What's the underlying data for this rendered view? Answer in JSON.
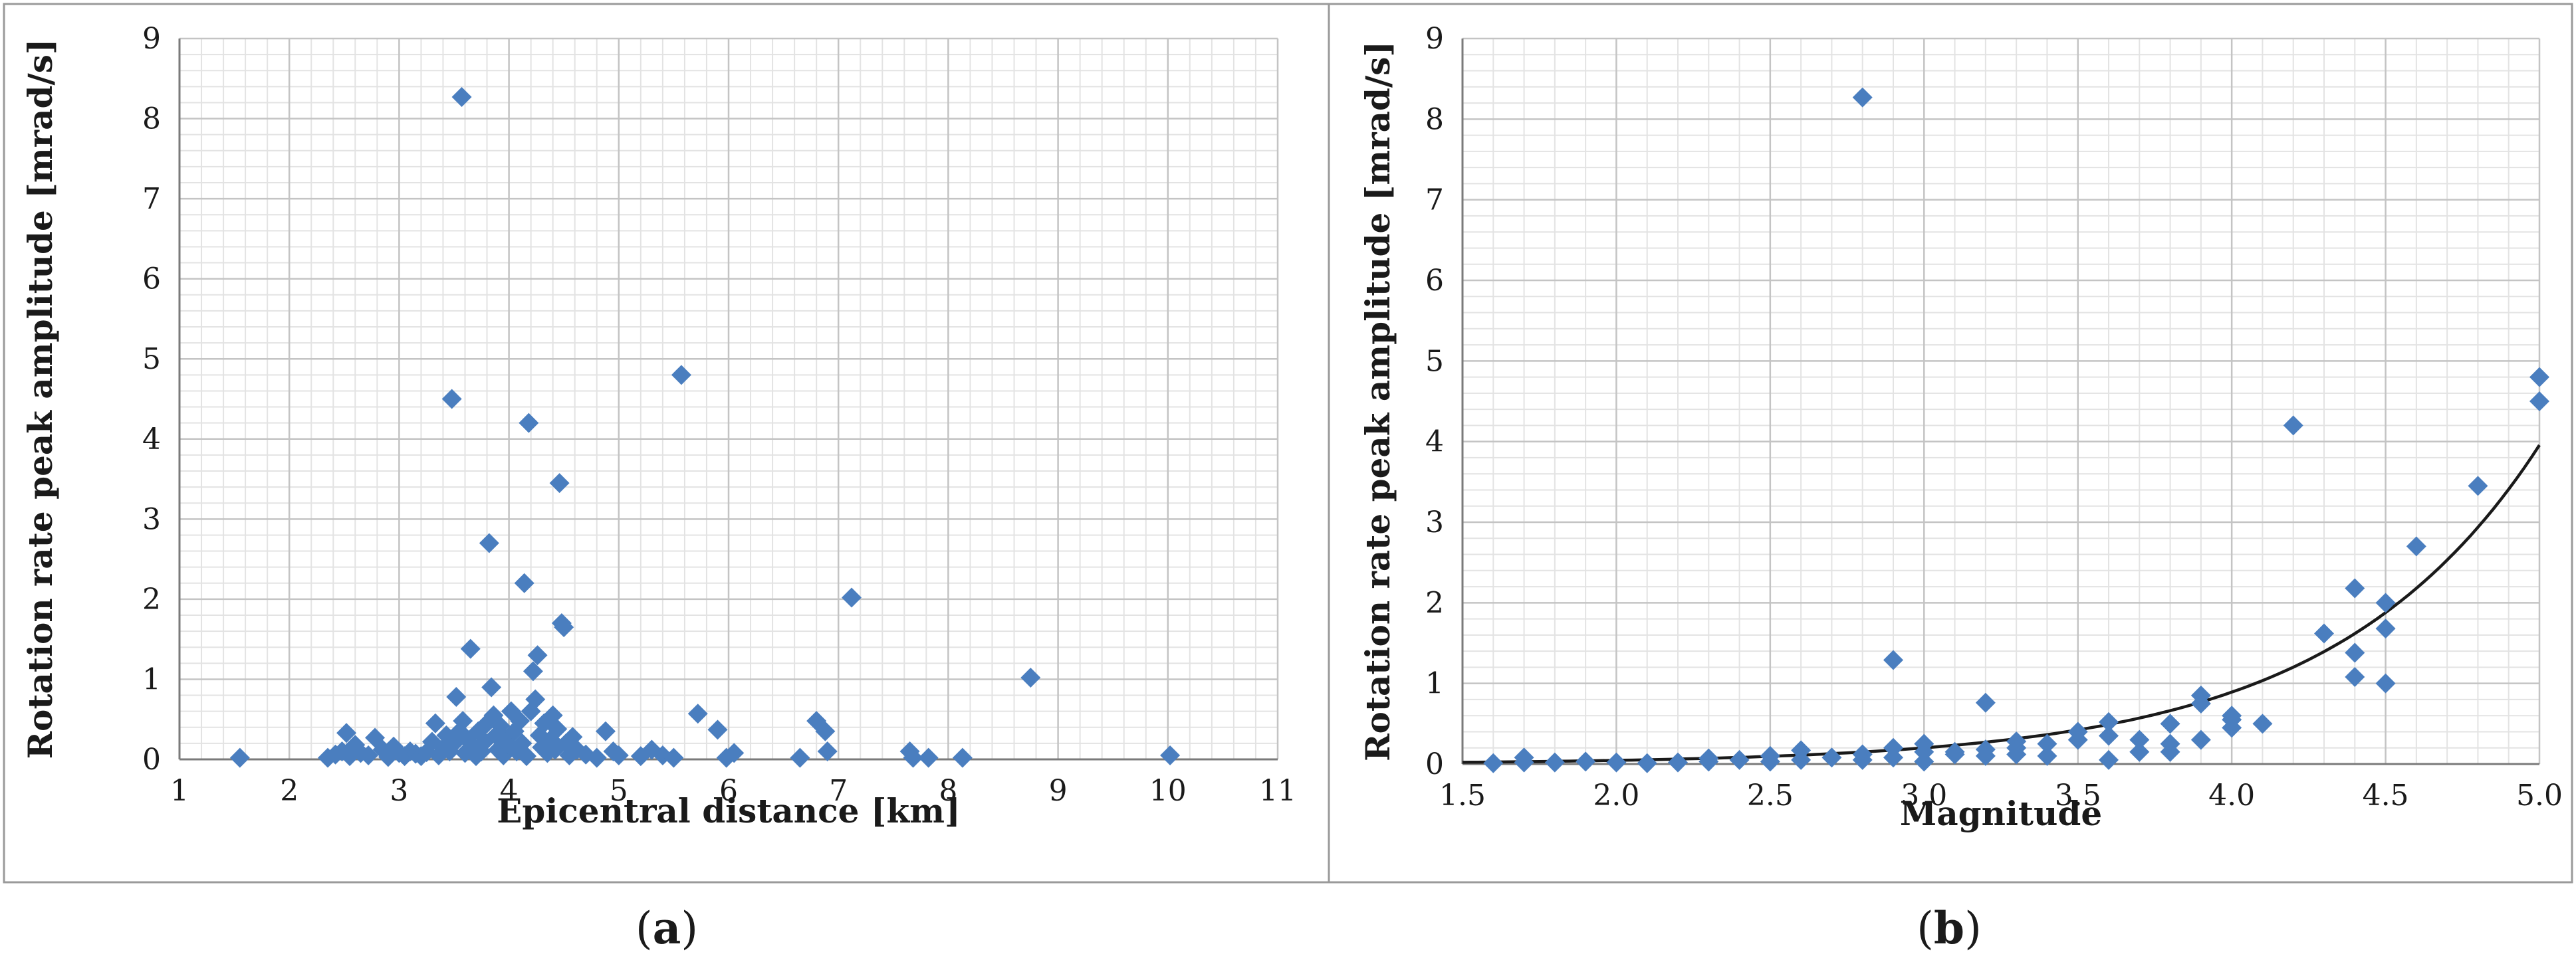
{
  "chart_data": [
    {
      "type": "scatter",
      "panel_label": "a",
      "xlabel": "Epicentral distance  [km]",
      "ylabel": "Rotation rate peak amplitude [mrad/s]",
      "xlim": [
        1,
        11
      ],
      "ylim": [
        0,
        9
      ],
      "x_ticks": [
        1,
        2,
        3,
        4,
        5,
        6,
        7,
        8,
        9,
        10,
        11
      ],
      "y_ticks": [
        0,
        1,
        2,
        3,
        4,
        5,
        6,
        7,
        8,
        9
      ],
      "x_tick_labels": [
        "1",
        "2",
        "3",
        "4",
        "5",
        "6",
        "7",
        "8",
        "9",
        "10",
        "11"
      ],
      "y_tick_labels": [
        "0",
        "1",
        "2",
        "3",
        "4",
        "5",
        "6",
        "7",
        "8",
        "9"
      ],
      "grid": "major and minor",
      "marker": "diamond",
      "marker_color": "#4a7ebf",
      "series": [
        {
          "points": [
            [
              1.55,
              0.02
            ],
            [
              2.35,
              0.02
            ],
            [
              2.42,
              0.06
            ],
            [
              2.48,
              0.1
            ],
            [
              2.52,
              0.33
            ],
            [
              2.55,
              0.04
            ],
            [
              2.6,
              0.18
            ],
            [
              2.65,
              0.08
            ],
            [
              2.72,
              0.05
            ],
            [
              2.78,
              0.27
            ],
            [
              2.85,
              0.12
            ],
            [
              2.9,
              0.03
            ],
            [
              2.95,
              0.16
            ],
            [
              3.0,
              0.08
            ],
            [
              3.05,
              0.04
            ],
            [
              3.1,
              0.1
            ],
            [
              3.15,
              0.07
            ],
            [
              3.2,
              0.04
            ],
            [
              3.25,
              0.09
            ],
            [
              3.3,
              0.22
            ],
            [
              3.33,
              0.45
            ],
            [
              3.36,
              0.05
            ],
            [
              3.4,
              0.14
            ],
            [
              3.43,
              0.3
            ],
            [
              3.46,
              0.1
            ],
            [
              3.48,
              4.5
            ],
            [
              3.5,
              0.2
            ],
            [
              3.52,
              0.78
            ],
            [
              3.55,
              0.35
            ],
            [
              3.57,
              8.27
            ],
            [
              3.58,
              0.48
            ],
            [
              3.6,
              0.08
            ],
            [
              3.62,
              0.25
            ],
            [
              3.65,
              1.38
            ],
            [
              3.68,
              0.15
            ],
            [
              3.7,
              0.04
            ],
            [
              3.72,
              0.35
            ],
            [
              3.75,
              0.1
            ],
            [
              3.78,
              0.22
            ],
            [
              3.8,
              0.45
            ],
            [
              3.82,
              2.7
            ],
            [
              3.84,
              0.9
            ],
            [
              3.86,
              0.55
            ],
            [
              3.88,
              0.3
            ],
            [
              3.9,
              0.12
            ],
            [
              3.92,
              0.42
            ],
            [
              3.95,
              0.05
            ],
            [
              3.97,
              0.25
            ],
            [
              4.0,
              0.18
            ],
            [
              4.02,
              0.6
            ],
            [
              4.05,
              0.35
            ],
            [
              4.07,
              0.1
            ],
            [
              4.1,
              0.48
            ],
            [
              4.12,
              0.2
            ],
            [
              4.14,
              2.2
            ],
            [
              4.16,
              0.04
            ],
            [
              4.18,
              4.2
            ],
            [
              4.2,
              0.6
            ],
            [
              4.22,
              1.1
            ],
            [
              4.24,
              0.75
            ],
            [
              4.26,
              1.3
            ],
            [
              4.28,
              0.3
            ],
            [
              4.3,
              0.15
            ],
            [
              4.32,
              0.45
            ],
            [
              4.35,
              0.08
            ],
            [
              4.38,
              0.25
            ],
            [
              4.4,
              0.55
            ],
            [
              4.42,
              0.12
            ],
            [
              4.44,
              0.38
            ],
            [
              4.46,
              3.45
            ],
            [
              4.48,
              1.7
            ],
            [
              4.5,
              1.65
            ],
            [
              4.52,
              0.2
            ],
            [
              4.55,
              0.05
            ],
            [
              4.58,
              0.28
            ],
            [
              4.62,
              0.12
            ],
            [
              4.7,
              0.06
            ],
            [
              4.8,
              0.02
            ],
            [
              4.88,
              0.35
            ],
            [
              4.95,
              0.1
            ],
            [
              5.0,
              0.05
            ],
            [
              5.2,
              0.04
            ],
            [
              5.3,
              0.12
            ],
            [
              5.4,
              0.05
            ],
            [
              5.5,
              0.02
            ],
            [
              5.57,
              4.8
            ],
            [
              5.72,
              0.57
            ],
            [
              5.9,
              0.37
            ],
            [
              5.98,
              0.02
            ],
            [
              6.05,
              0.08
            ],
            [
              6.65,
              0.02
            ],
            [
              6.8,
              0.48
            ],
            [
              6.88,
              0.35
            ],
            [
              6.9,
              0.1
            ],
            [
              7.12,
              2.02
            ],
            [
              7.65,
              0.1
            ],
            [
              7.68,
              0.02
            ],
            [
              7.82,
              0.02
            ],
            [
              8.13,
              0.02
            ],
            [
              8.75,
              1.02
            ],
            [
              10.02,
              0.05
            ]
          ]
        }
      ]
    },
    {
      "type": "scatter",
      "panel_label": "b",
      "xlabel": "Magnitude",
      "ylabel": "Rotation rate peak amplitude [mrad/s]",
      "xlim": [
        1.5,
        5.0
      ],
      "ylim": [
        0,
        9
      ],
      "x_ticks": [
        1.5,
        2.0,
        2.5,
        3.0,
        3.5,
        4.0,
        4.5,
        5.0
      ],
      "y_ticks": [
        0,
        1,
        2,
        3,
        4,
        5,
        6,
        7,
        8,
        9
      ],
      "x_tick_labels": [
        "1.5",
        "2.0",
        "2.5",
        "3.0",
        "3.5",
        "4.0",
        "4.5",
        "5.0"
      ],
      "y_tick_labels": [
        "0",
        "1",
        "2",
        "3",
        "4",
        "5",
        "6",
        "7",
        "8",
        "9"
      ],
      "grid": "major and minor",
      "marker": "diamond",
      "marker_color": "#4a7ebf",
      "trendline_color": "#1a1a1a",
      "trendline": {
        "type": "exponential",
        "a": 0.0023,
        "b": 1.49
      },
      "series": [
        {
          "points": [
            [
              1.6,
              0.01
            ],
            [
              1.7,
              0.02
            ],
            [
              1.7,
              0.08
            ],
            [
              1.8,
              0.02
            ],
            [
              1.9,
              0.03
            ],
            [
              2.0,
              0.02
            ],
            [
              2.1,
              0.01
            ],
            [
              2.2,
              0.02
            ],
            [
              2.3,
              0.03
            ],
            [
              2.3,
              0.07
            ],
            [
              2.4,
              0.05
            ],
            [
              2.5,
              0.03
            ],
            [
              2.5,
              0.1
            ],
            [
              2.6,
              0.05
            ],
            [
              2.6,
              0.17
            ],
            [
              2.7,
              0.08
            ],
            [
              2.8,
              0.05
            ],
            [
              2.8,
              0.12
            ],
            [
              2.8,
              8.27
            ],
            [
              2.9,
              0.08
            ],
            [
              2.9,
              0.2
            ],
            [
              2.9,
              1.29
            ],
            [
              3.0,
              0.03
            ],
            [
              3.0,
              0.15
            ],
            [
              3.0,
              0.25
            ],
            [
              3.1,
              0.12
            ],
            [
              3.1,
              0.15
            ],
            [
              3.2,
              0.1
            ],
            [
              3.2,
              0.18
            ],
            [
              3.2,
              0.76
            ],
            [
              3.3,
              0.12
            ],
            [
              3.3,
              0.2
            ],
            [
              3.3,
              0.28
            ],
            [
              3.4,
              0.1
            ],
            [
              3.4,
              0.25
            ],
            [
              3.5,
              0.3
            ],
            [
              3.5,
              0.4
            ],
            [
              3.6,
              0.05
            ],
            [
              3.6,
              0.35
            ],
            [
              3.6,
              0.52
            ],
            [
              3.7,
              0.15
            ],
            [
              3.7,
              0.3
            ],
            [
              3.8,
              0.15
            ],
            [
              3.8,
              0.25
            ],
            [
              3.8,
              0.5
            ],
            [
              3.9,
              0.3
            ],
            [
              3.9,
              0.75
            ],
            [
              3.9,
              0.85
            ],
            [
              4.0,
              0.45
            ],
            [
              4.0,
              0.55
            ],
            [
              4.0,
              0.6
            ],
            [
              4.1,
              0.5
            ],
            [
              4.2,
              4.2
            ],
            [
              4.3,
              1.62
            ],
            [
              4.4,
              1.08
            ],
            [
              4.4,
              1.38
            ],
            [
              4.4,
              2.18
            ],
            [
              4.5,
              1.0
            ],
            [
              4.5,
              1.68
            ],
            [
              4.5,
              2.0
            ],
            [
              4.6,
              2.7
            ],
            [
              4.8,
              3.45
            ],
            [
              5.0,
              4.5
            ],
            [
              5.0,
              4.8
            ]
          ]
        }
      ]
    }
  ],
  "captions": [
    {
      "open": "(",
      "letter": "a",
      "close": ")"
    },
    {
      "open": "(",
      "letter": "b",
      "close": ")"
    }
  ]
}
